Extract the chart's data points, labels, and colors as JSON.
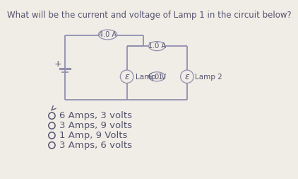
{
  "title": "What will be the current and voltage of Lamp 1 in the circuit below?",
  "title_fontsize": 8.5,
  "bg_color": "#f0ece6",
  "current_outer": "4.0 A",
  "current_inner": "1.0 A",
  "voltage_label": "6.0 V",
  "lamp1_label": "Lamp 1",
  "lamp2_label": "Lamp 2",
  "choices": [
    "6 Amps, 3 volts",
    "3 Amps, 9 volts",
    "1 Amp, 9 Volts",
    "3 Amps, 6 volts"
  ],
  "choice_fontsize": 9.5,
  "line_color": "#9090b0",
  "text_color": "#555570",
  "circle_ec": "#9090b0",
  "circle_fc": "#f0ece6",
  "battery_color": "#9090b0"
}
